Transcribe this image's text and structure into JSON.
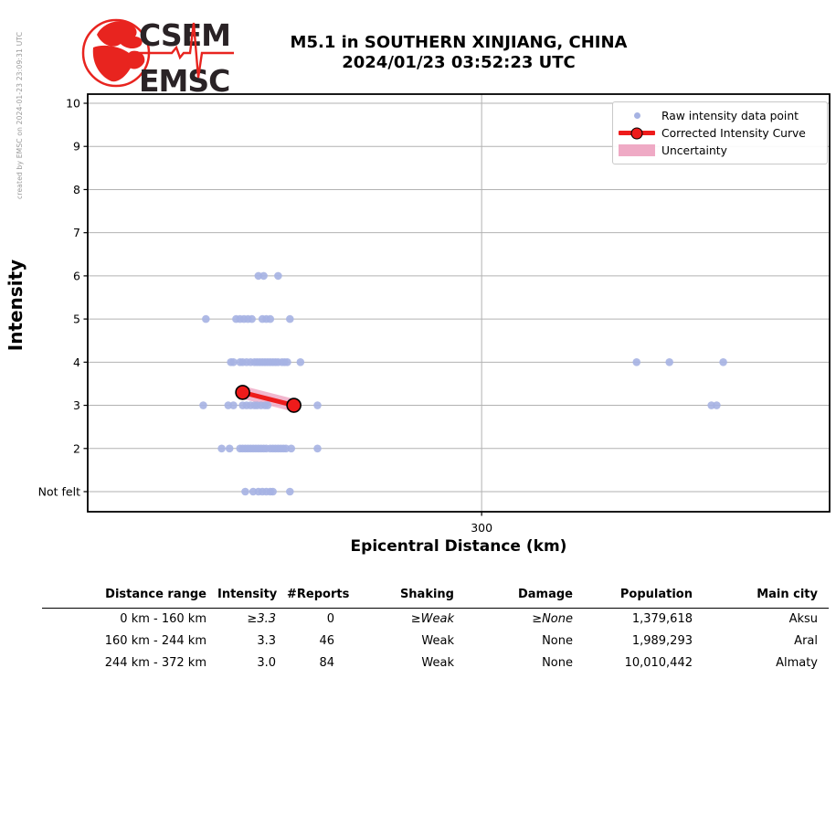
{
  "header": {
    "logo": {
      "line1": "CSEM",
      "line2": "EMSC"
    },
    "title_line1": "M5.1 in SOUTHERN XINJIANG, CHINA",
    "title_line2": "2024/01/23 03:52:23 UTC",
    "created_by": "created by EMSC on 2024-01-23 23:09:31 UTC"
  },
  "chart_data": {
    "type": "scatter",
    "title": "M5.1 in SOUTHERN XINJIANG, CHINA 2024/01/23 03:52:23 UTC",
    "xlabel": "Epicentral Distance (km)",
    "ylabel": "Intensity",
    "xlim": [
      0,
      565
    ],
    "ylim": [
      1,
      10
    ],
    "grid": true,
    "x_ticks": [
      {
        "value": 300,
        "label": "300"
      }
    ],
    "y_ticks": [
      {
        "value": 10,
        "label": "10"
      },
      {
        "value": 9,
        "label": "9"
      },
      {
        "value": 8,
        "label": "8"
      },
      {
        "value": 7,
        "label": "7"
      },
      {
        "value": 6,
        "label": "6"
      },
      {
        "value": 5,
        "label": "5"
      },
      {
        "value": 4,
        "label": "4"
      },
      {
        "value": 3,
        "label": "3"
      },
      {
        "value": 2,
        "label": "2"
      },
      {
        "value": 1,
        "label": "Not felt"
      }
    ],
    "legend": {
      "position": "upper right",
      "items": [
        "Raw intensity data point",
        "Corrected Intensity Curve",
        "Uncertainty"
      ]
    },
    "series": {
      "raw_points": {
        "name": "Raw intensity data point",
        "groups": [
          {
            "intensity": 6,
            "km": [
              130,
              134,
              145
            ]
          },
          {
            "intensity": 5,
            "km": [
              90,
              113,
              116,
              119,
              122,
              125,
              133,
              136,
              139,
              154
            ]
          },
          {
            "intensity": 4,
            "km": [
              109,
              111,
              116,
              118,
              121,
              124,
              127,
              129,
              131,
              133,
              135,
              137,
              139,
              141,
              143,
              145,
              148,
              150,
              152,
              162,
              418,
              443,
              484
            ]
          },
          {
            "intensity": 3,
            "km": [
              88,
              107,
              111,
              118,
              121,
              124,
              127,
              129,
              132,
              135,
              137,
              175,
              475,
              479
            ]
          },
          {
            "intensity": 2,
            "km": [
              102,
              108,
              116,
              118,
              120,
              122,
              124,
              126,
              128,
              130,
              132,
              134,
              136,
              139,
              141,
              143,
              145,
              147,
              149,
              151,
              155,
              175
            ]
          },
          {
            "intensity": 1,
            "km": [
              120,
              126,
              130,
              133,
              136,
              139,
              141,
              154
            ]
          }
        ]
      },
      "corrected_curve": {
        "name": "Corrected Intensity Curve",
        "points": [
          {
            "km": 118,
            "intensity": 3.3
          },
          {
            "km": 157,
            "intensity": 3.0
          }
        ]
      },
      "uncertainty": {
        "name": "Uncertainty",
        "half_width_intensity": 0.15
      }
    }
  },
  "table": {
    "headers": [
      "Distance range",
      "Intensity",
      "#Reports",
      "Shaking",
      "Damage",
      "Population",
      "Main city"
    ],
    "rows": [
      {
        "distance_range": "0 km - 160 km",
        "intensity": "≥3.3",
        "reports": "0",
        "shaking": "≥Weak",
        "damage": "≥None",
        "population": "1,379,618",
        "main_city": "Aksu",
        "italic": true
      },
      {
        "distance_range": "160 km - 244 km",
        "intensity": "3.3",
        "reports": "46",
        "shaking": "Weak",
        "damage": "None",
        "population": "1,989,293",
        "main_city": "Aral",
        "italic": false
      },
      {
        "distance_range": "244 km - 372 km",
        "intensity": "3.0",
        "reports": "84",
        "shaking": "Weak",
        "damage": "None",
        "population": "10,010,442",
        "main_city": "Almaty",
        "italic": false
      }
    ]
  },
  "colors": {
    "raw_point": "#a6b3e3",
    "curve_red": "#ee1b1b",
    "uncertainty_pink": "#efaac5",
    "grid": "#b2b2b2",
    "axis_black": "#000000",
    "logo_red": "#e8241f",
    "logo_text": "#2a2326",
    "created_by_gray": "#999999"
  }
}
